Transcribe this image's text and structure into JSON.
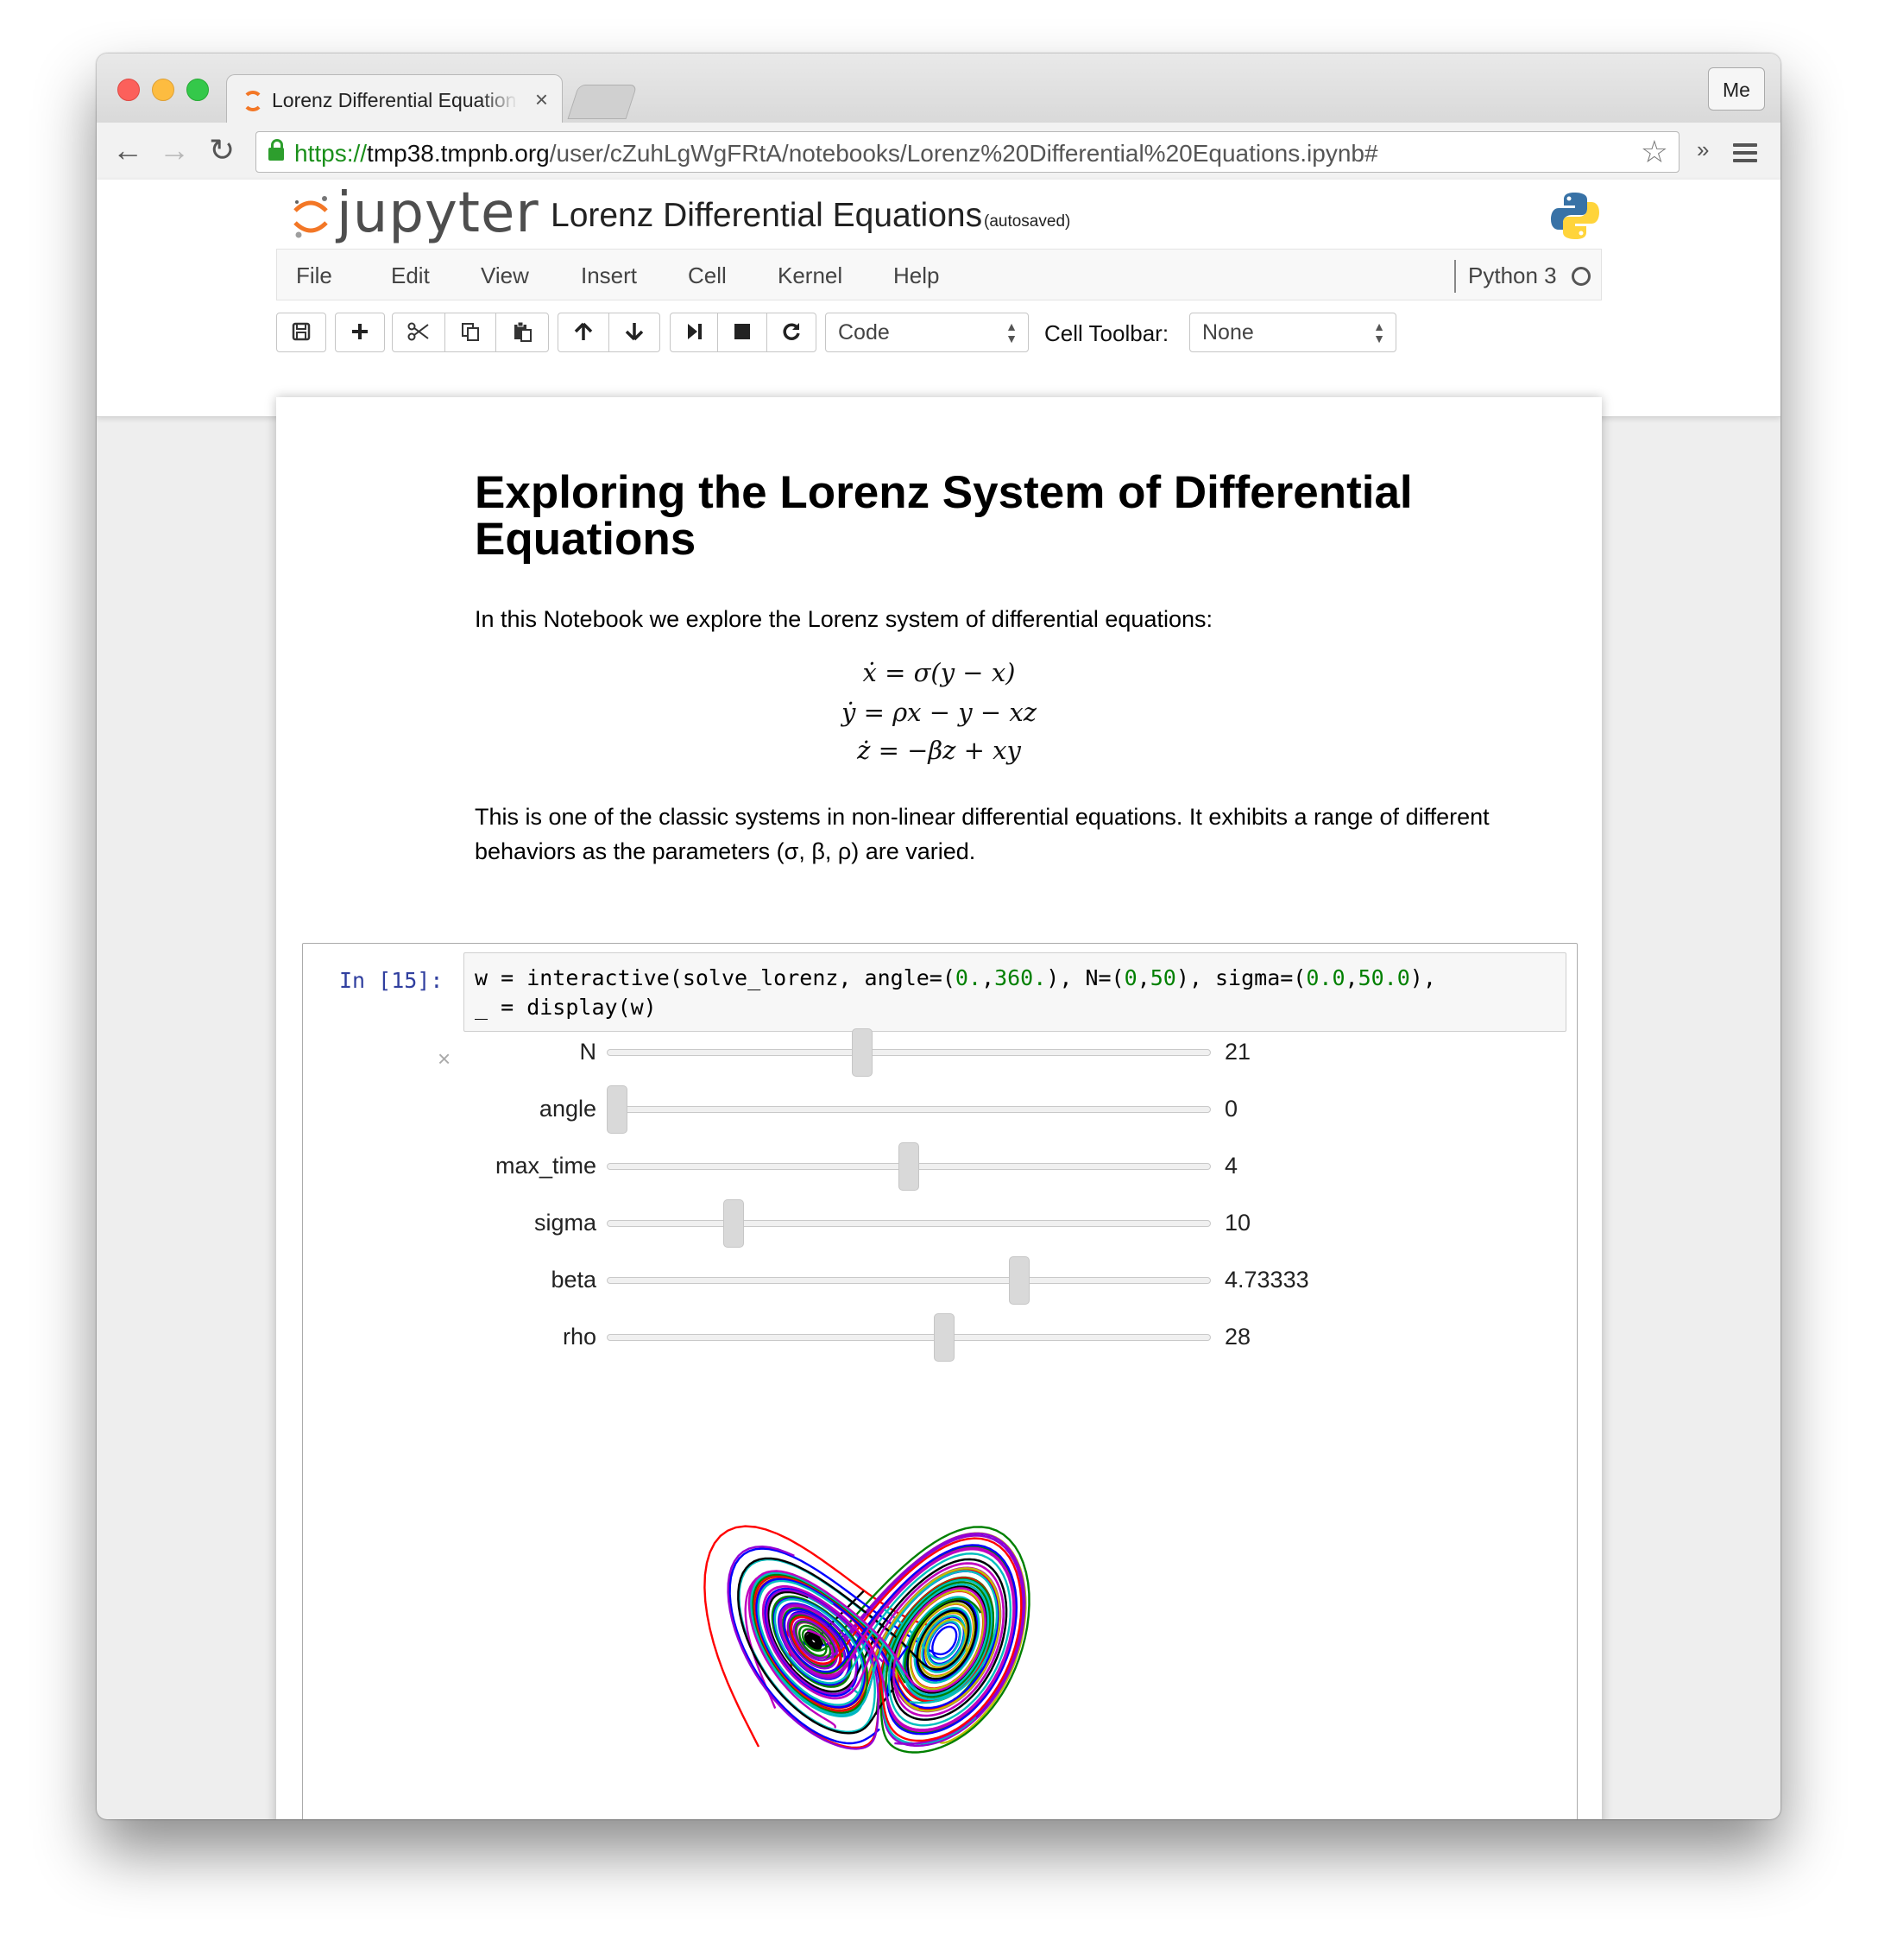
{
  "browser": {
    "tab_title": "Lorenz Differential Equations",
    "tab_close": "×",
    "user_button": "Me",
    "url": {
      "scheme": "https://",
      "host": "tmp38.tmpnb.org",
      "path": "/user/cZuhLgWgFRtA/notebooks/Lorenz%20Differential%20Equations.ipynb#"
    },
    "extensions_chevron": "»"
  },
  "jupyter": {
    "logo_text": "jupyter",
    "notebook_title": "Lorenz Differential Equations",
    "autosave_status": "(autosaved)",
    "menu": [
      "File",
      "Edit",
      "View",
      "Insert",
      "Cell",
      "Kernel",
      "Help"
    ],
    "kernel_name": "Python 3",
    "cell_type": "Code",
    "cell_toolbar_label": "Cell Toolbar:",
    "cell_toolbar_value": "None"
  },
  "notebook": {
    "heading": "Exploring the Lorenz System of Differential Equations",
    "intro": "In this Notebook we explore the Lorenz system of differential equations:",
    "equations": [
      "ẋ = σ(y − x)",
      "ẏ = ρx − y − xz",
      "ż = −βz + xy"
    ],
    "description": "This is one of the classic systems in non-linear differential equations. It exhibits a range of different behaviors as the parameters (σ, β, ρ) are varied.",
    "cell": {
      "prompt": "In [15]:",
      "code_line1_parts": [
        "w = interactive(solve_lorenz, angle=(",
        "0.",
        ",",
        "360.",
        "), N=(",
        "0",
        ",",
        "50",
        "), sigma=(",
        "0.0",
        ",",
        "50.0",
        "),"
      ],
      "code_line2": "_ = display(w)",
      "close_output": "×"
    },
    "sliders": [
      {
        "label": "N",
        "value": "21",
        "fraction": 0.42
      },
      {
        "label": "angle",
        "value": "0",
        "fraction": 0.0
      },
      {
        "label": "max_time",
        "value": "4",
        "fraction": 0.5
      },
      {
        "label": "sigma",
        "value": "10",
        "fraction": 0.2
      },
      {
        "label": "beta",
        "value": "4.73333",
        "fraction": 0.69
      },
      {
        "label": "rho",
        "value": "28",
        "fraction": 0.56
      }
    ],
    "plot_colors": [
      "#ff0000",
      "#008000",
      "#0000ff",
      "#00bfbf",
      "#bf00bf",
      "#bfbf00",
      "#000000",
      "#9400d3"
    ]
  }
}
